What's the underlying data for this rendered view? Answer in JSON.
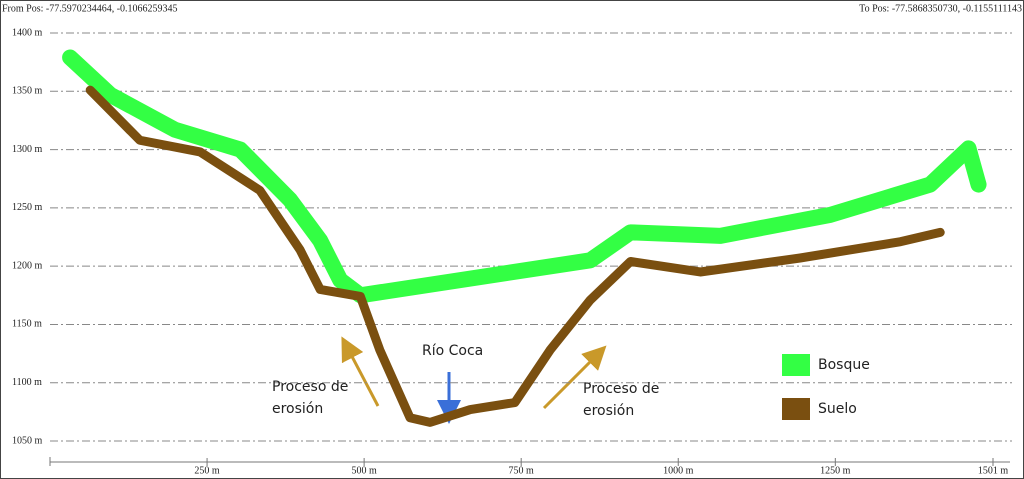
{
  "chart_data": {
    "type": "line",
    "header_left": "From Pos: -77.5970234464, -0.1066259345",
    "header_right": "To Pos: -77.5868350730, -0.1155111143",
    "xlim": [
      0,
      1501
    ],
    "ylim": [
      1032,
      1400
    ],
    "xticks": [
      {
        "value": 250,
        "label": "250 m"
      },
      {
        "value": 500,
        "label": "500 m"
      },
      {
        "value": 750,
        "label": "750 m"
      },
      {
        "value": 1000,
        "label": "1000 m"
      },
      {
        "value": 1250,
        "label": "1250 m"
      },
      {
        "value": 1501,
        "label": "1501 m"
      }
    ],
    "yticks": [
      {
        "value": 1050,
        "label": "1050 m"
      },
      {
        "value": 1100,
        "label": "1100 m"
      },
      {
        "value": 1150,
        "label": "1150 m"
      },
      {
        "value": 1200,
        "label": "1200 m"
      },
      {
        "value": 1250,
        "label": "1250 m"
      },
      {
        "value": 1300,
        "label": "1300 m"
      },
      {
        "value": 1350,
        "label": "1350 m"
      },
      {
        "value": 1400,
        "label": "1400 m"
      }
    ],
    "grid": true,
    "series": [
      {
        "name": "Bosque",
        "color": "#33ff44",
        "x": [
          32,
          96,
          199,
          303,
          382,
          430,
          462,
          494,
          860,
          924,
          1067,
          1242,
          1401,
          1462,
          1478
        ],
        "values": [
          1379,
          1347,
          1317,
          1300,
          1257,
          1222,
          1188,
          1175,
          1205,
          1229,
          1226,
          1244,
          1270,
          1301,
          1270
        ]
      },
      {
        "name": "Suelo",
        "color": "#7a4f10",
        "x": [
          64,
          143,
          239,
          334,
          398,
          430,
          494,
          525,
          573,
          605,
          669,
          740,
          796,
          860,
          924,
          1035,
          1194,
          1354,
          1417
        ],
        "values": [
          1351,
          1308,
          1298,
          1265,
          1214,
          1180,
          1174,
          1128,
          1070,
          1066,
          1077,
          1083,
          1128,
          1171,
          1204,
          1195,
          1207,
          1221,
          1229
        ]
      }
    ],
    "annotations": [
      "Río Coca",
      "Proceso de erosión",
      "Proceso de erosión"
    ]
  }
}
